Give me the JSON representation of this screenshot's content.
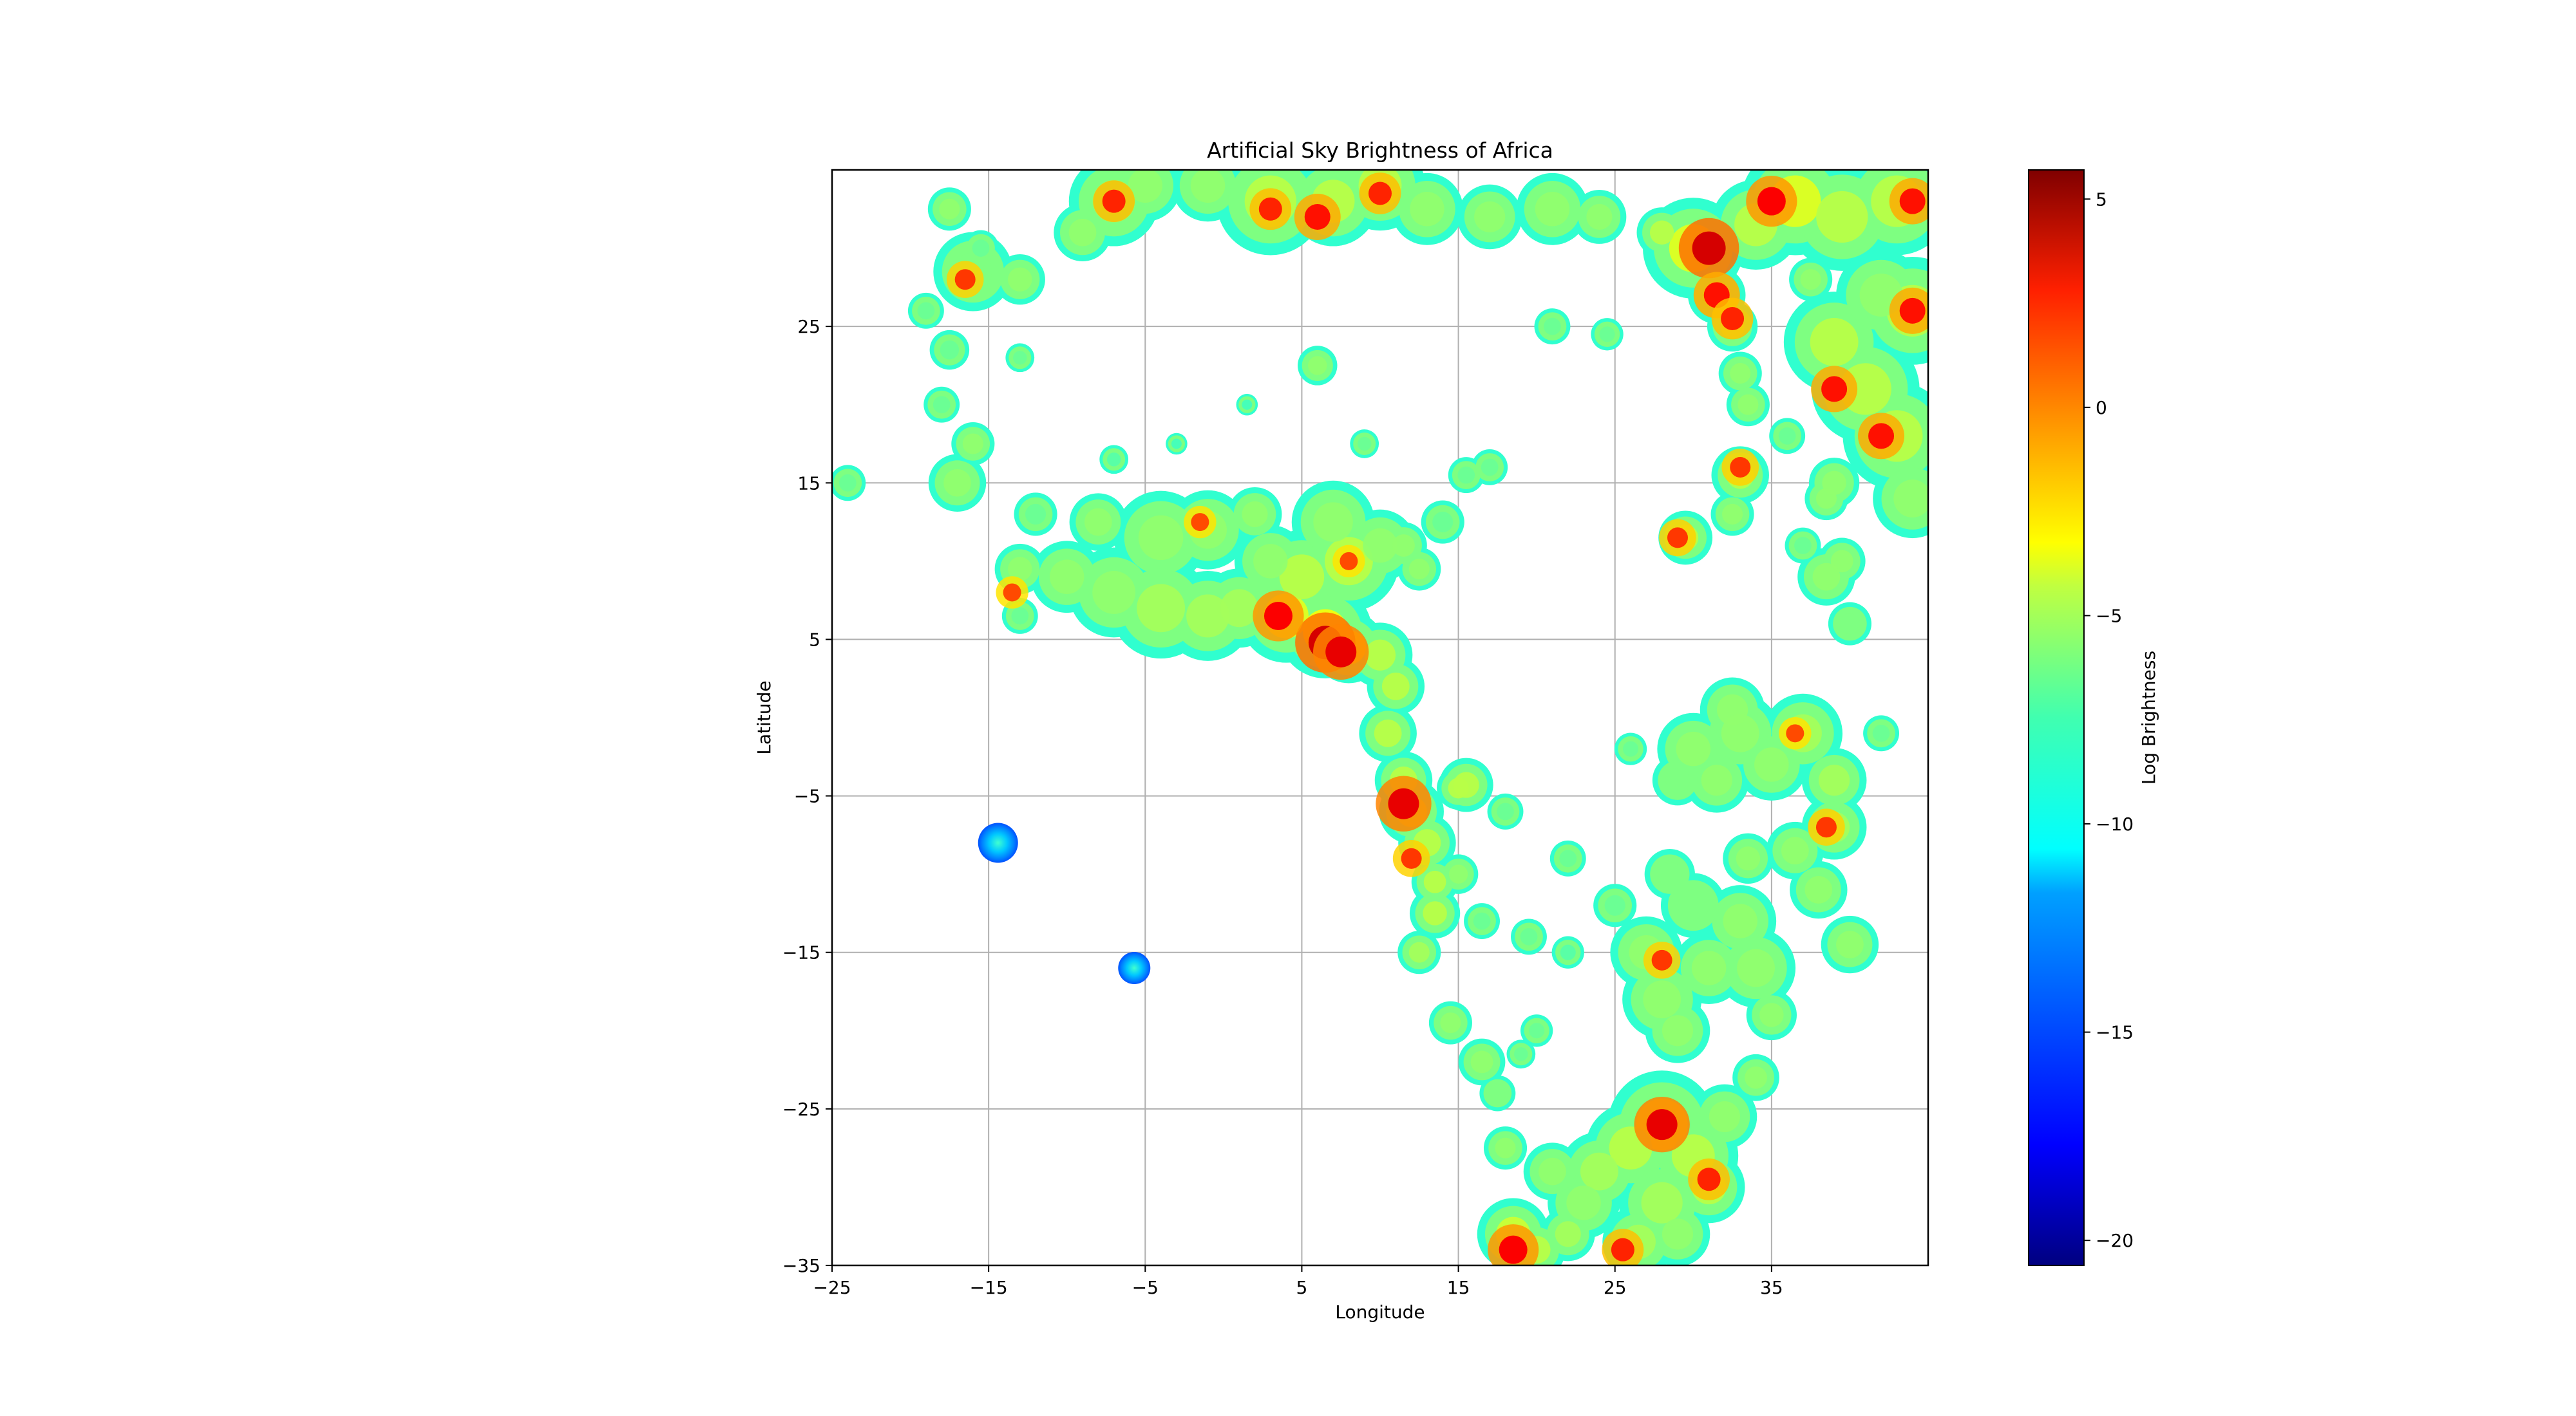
{
  "chart_data": {
    "type": "heatmap",
    "title": "Artificial Sky Brightness of Africa",
    "xlabel": "Longitude",
    "ylabel": "Latitude",
    "xlim": [
      -25,
      45
    ],
    "ylim": [
      -35,
      35
    ],
    "xticks": [
      -25,
      -15,
      -5,
      5,
      15,
      25,
      35
    ],
    "xtick_labels": [
      "−25",
      "−15",
      "−5",
      "5",
      "15",
      "25",
      "35"
    ],
    "yticks": [
      -35,
      -25,
      -15,
      -5,
      5,
      15,
      25
    ],
    "ytick_labels": [
      "−35",
      "−25",
      "−15",
      "−5",
      "5",
      "15",
      "25"
    ],
    "grid": true,
    "colormap": "jet",
    "colorbar": {
      "label": "Log Brightness",
      "range": [
        -20.6,
        5.7
      ],
      "ticks": [
        5,
        0,
        -5,
        -10,
        -15,
        -20
      ],
      "tick_labels": [
        "5",
        "0",
        "−5",
        "−10",
        "−15",
        "−20"
      ]
    },
    "hotspots": [
      {
        "lon": 6.5,
        "lat": 4.8,
        "level": 3.5
      },
      {
        "lon": 7.5,
        "lat": 4.2,
        "level": 3
      },
      {
        "lon": 3.5,
        "lat": 6.5,
        "level": 2.5
      },
      {
        "lon": 11.5,
        "lat": -5.5,
        "level": 3
      },
      {
        "lon": 28,
        "lat": -26,
        "level": 3
      },
      {
        "lon": 31,
        "lat": 30,
        "level": 3.5
      },
      {
        "lon": 31.5,
        "lat": 27,
        "level": 2
      },
      {
        "lon": 32.5,
        "lat": 25.5,
        "level": 1.5
      },
      {
        "lon": 35,
        "lat": 33,
        "level": 2.5
      },
      {
        "lon": 39,
        "lat": 21,
        "level": 2
      },
      {
        "lon": 42,
        "lat": 18,
        "level": 2
      },
      {
        "lon": 44,
        "lat": 33,
        "level": 2
      },
      {
        "lon": 44,
        "lat": 26,
        "level": 2
      },
      {
        "lon": 6,
        "lat": 32,
        "level": 2
      },
      {
        "lon": 10,
        "lat": 33.5,
        "level": 1.5
      },
      {
        "lon": -7,
        "lat": 33,
        "level": 1.5
      },
      {
        "lon": 3,
        "lat": 32.5,
        "level": 1.5
      },
      {
        "lon": -16.5,
        "lat": 28,
        "level": 1
      },
      {
        "lon": 18.5,
        "lat": -34,
        "level": 2.5
      },
      {
        "lon": 31,
        "lat": -29.5,
        "level": 1.5
      },
      {
        "lon": 25.5,
        "lat": -34,
        "level": 1.5
      },
      {
        "lon": 29,
        "lat": 11.5,
        "level": 1
      },
      {
        "lon": 38.5,
        "lat": -7,
        "level": 1
      },
      {
        "lon": 12,
        "lat": -9,
        "level": 1
      },
      {
        "lon": 28,
        "lat": -15.5,
        "level": 1
      },
      {
        "lon": -1.5,
        "lat": 12.5,
        "level": 0.5
      },
      {
        "lon": -13.5,
        "lat": 8,
        "level": 0.5
      },
      {
        "lon": 8,
        "lat": 10,
        "level": 0.5
      },
      {
        "lon": 33,
        "lat": 16,
        "level": 1
      },
      {
        "lon": 36.5,
        "lat": -1,
        "level": 0.5
      }
    ],
    "isolated_spots": [
      {
        "lon": -14.4,
        "lat": -8,
        "level": -11
      },
      {
        "lon": -5.7,
        "lat": -16,
        "level": -11.5
      }
    ]
  }
}
